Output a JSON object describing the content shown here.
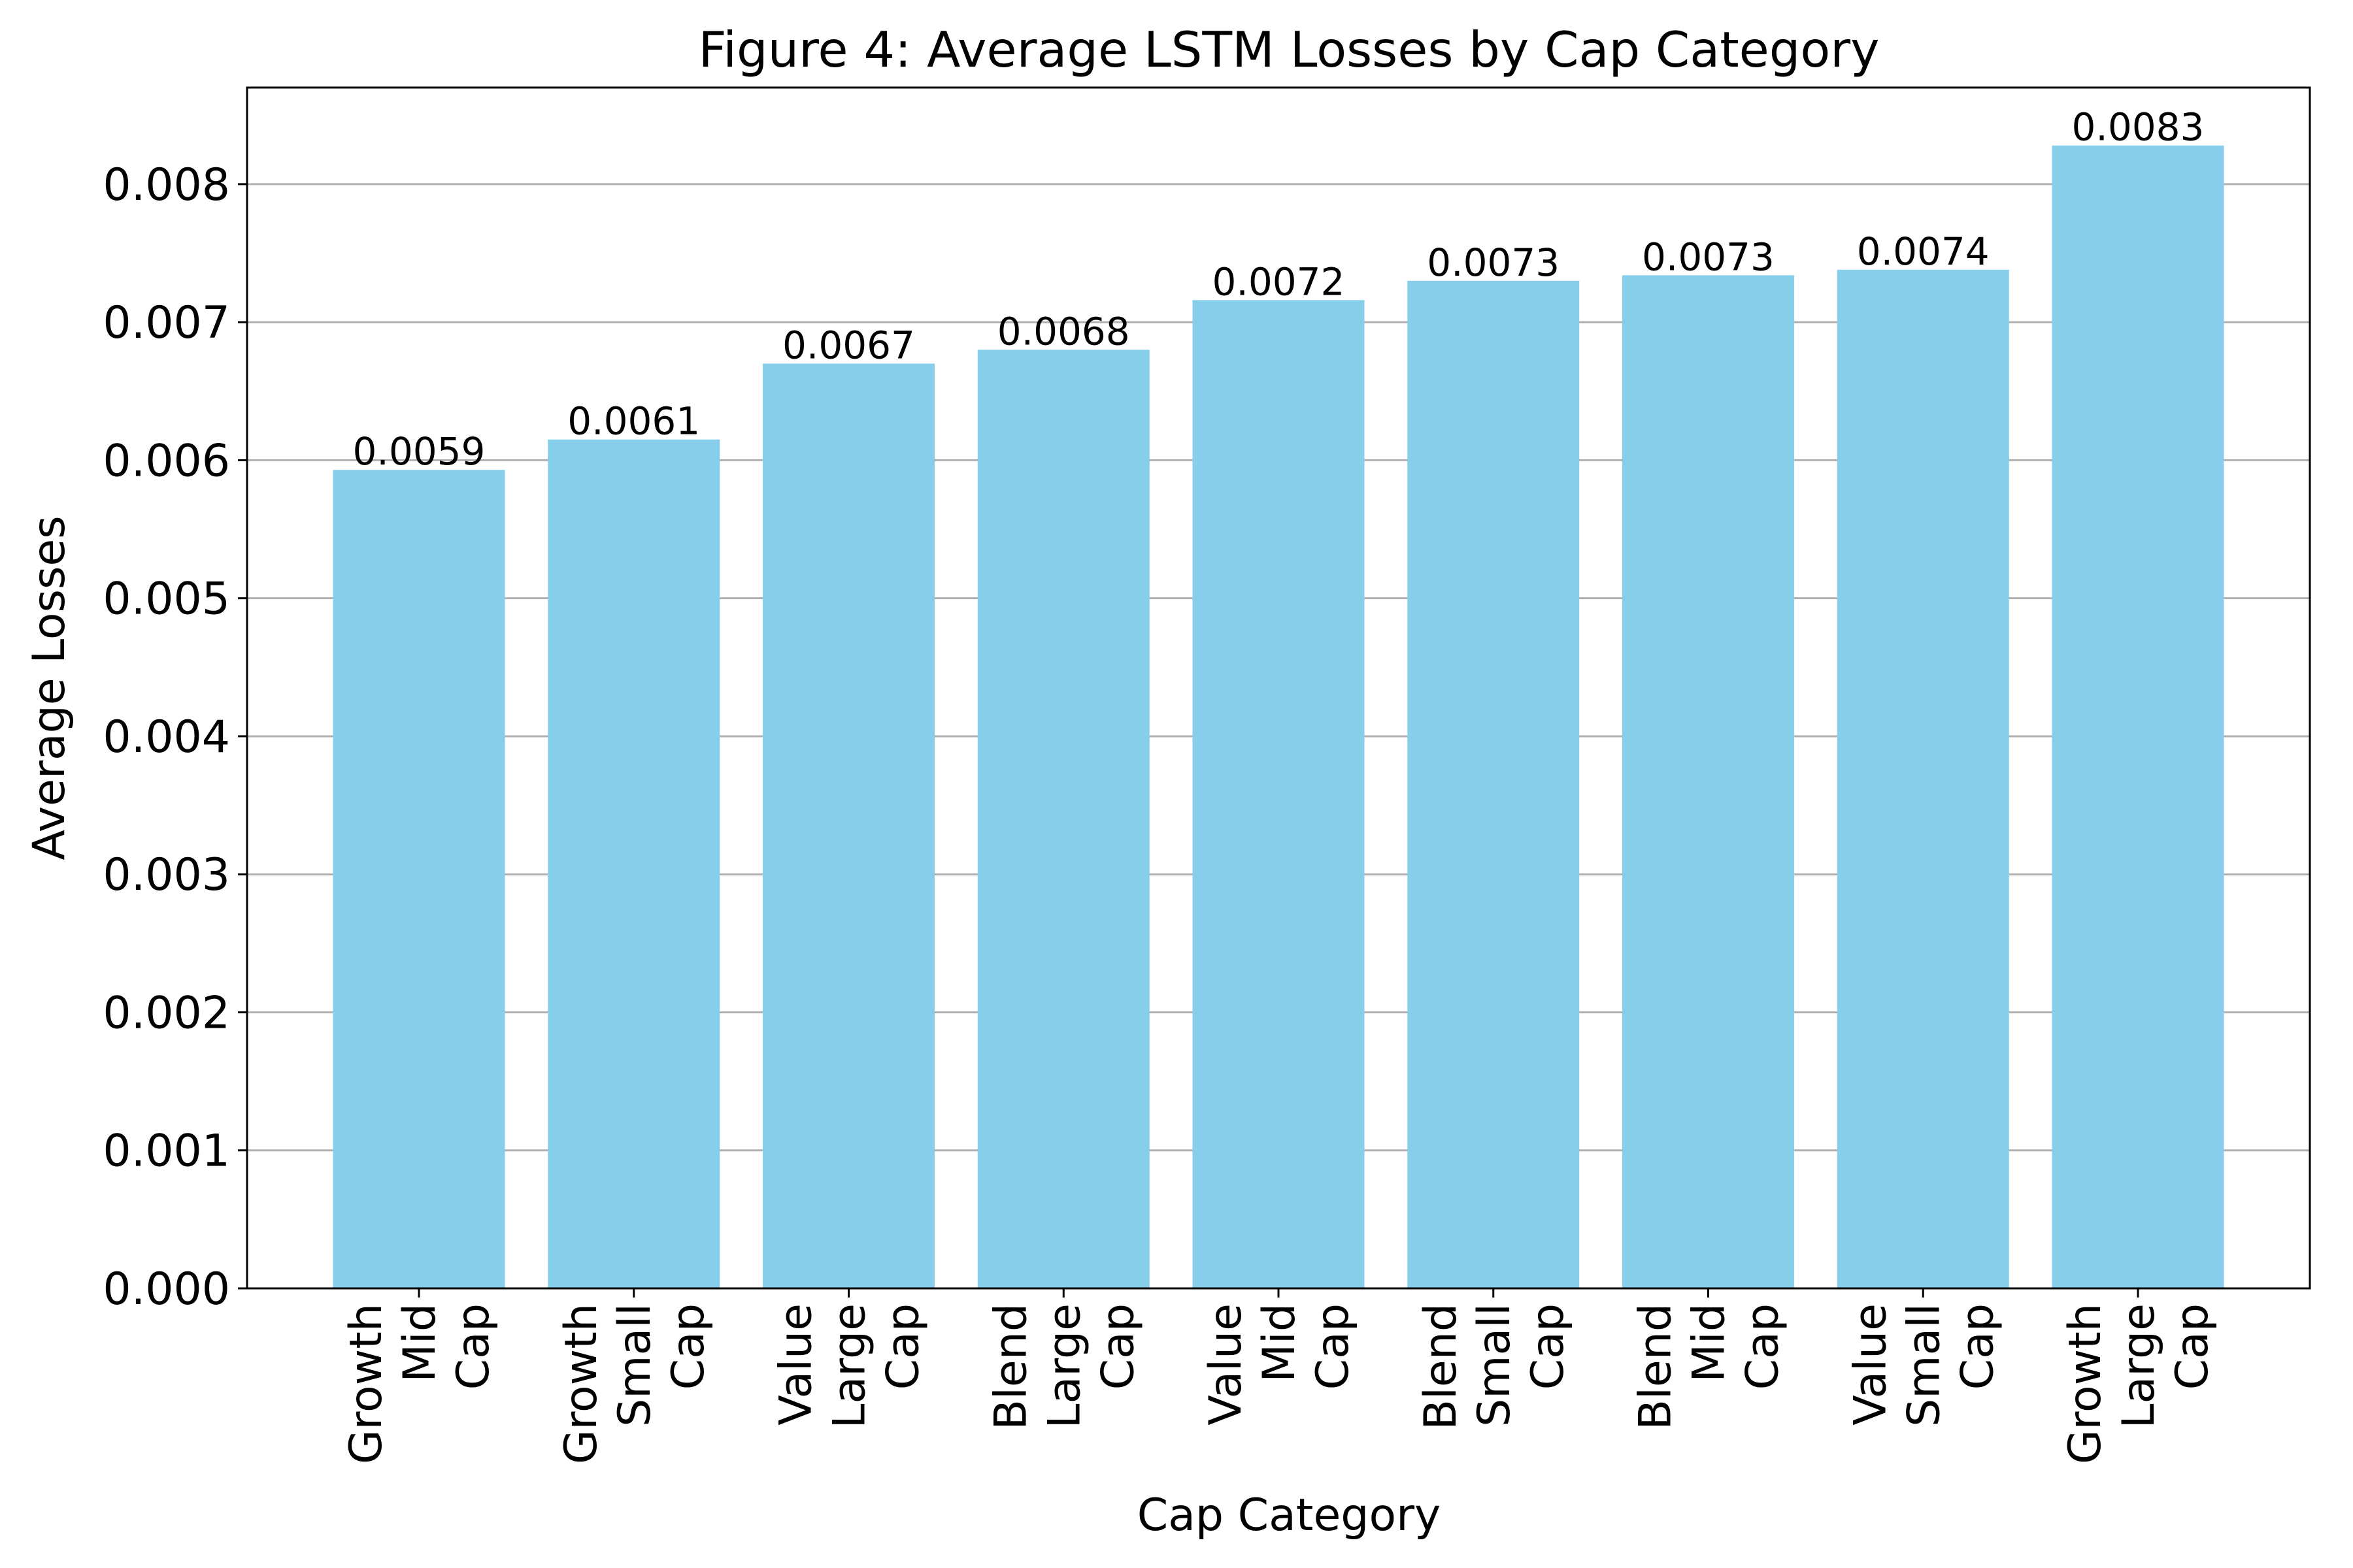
{
  "chart_data": {
    "type": "bar",
    "title": "Figure 4: Average LSTM Losses by Cap Category",
    "xlabel": "Cap Category",
    "ylabel": "Average Losses",
    "categories": [
      "Growth Mid Cap",
      "Growth Small Cap",
      "Value Large Cap",
      "Blend Large Cap",
      "Value Mid Cap",
      "Blend Small Cap",
      "Blend Mid Cap",
      "Value Small Cap",
      "Growth Large Cap"
    ],
    "category_lines": [
      [
        "Growth",
        "Mid",
        "Cap"
      ],
      [
        "Growth",
        "Small",
        "Cap"
      ],
      [
        "Value",
        "Large",
        "Cap"
      ],
      [
        "Blend",
        "Large",
        "Cap"
      ],
      [
        "Value",
        "Mid",
        "Cap"
      ],
      [
        "Blend",
        "Small",
        "Cap"
      ],
      [
        "Blend",
        "Mid",
        "Cap"
      ],
      [
        "Value",
        "Small",
        "Cap"
      ],
      [
        "Growth",
        "Large",
        "Cap"
      ]
    ],
    "values": [
      0.00593,
      0.00615,
      0.0067,
      0.0068,
      0.00716,
      0.0073,
      0.00734,
      0.00738,
      0.00828
    ],
    "data_labels": [
      "0.0059",
      "0.0061",
      "0.0067",
      "0.0068",
      "0.0072",
      "0.0073",
      "0.0073",
      "0.0074",
      "0.0083"
    ],
    "yticks": [
      0.0,
      0.001,
      0.002,
      0.003,
      0.004,
      0.005,
      0.006,
      0.007,
      0.008
    ],
    "ytick_labels": [
      "0.000",
      "0.001",
      "0.002",
      "0.003",
      "0.004",
      "0.005",
      "0.006",
      "0.007",
      "0.008"
    ],
    "ylim": [
      0,
      0.0087
    ],
    "grid": "y-major",
    "bar_color": "#87CEEB",
    "grid_color": "#b0b0b0"
  }
}
